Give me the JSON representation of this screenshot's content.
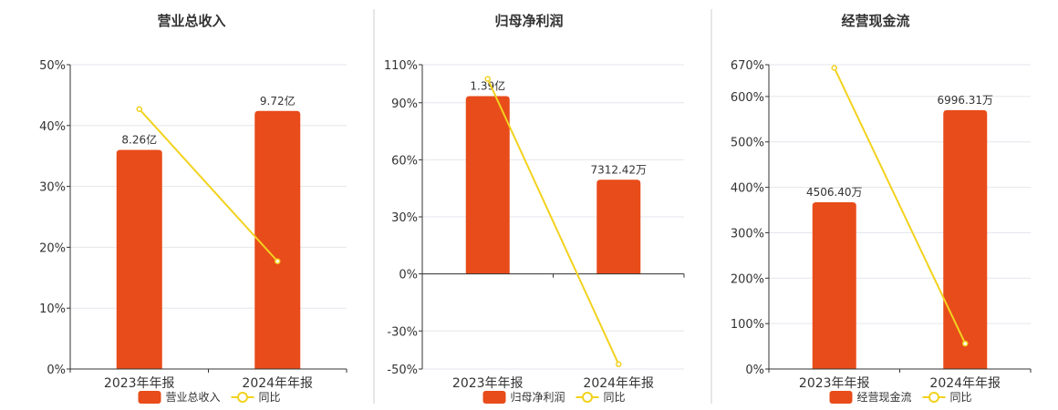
{
  "colors": {
    "bar": "#E84C1A",
    "line": "#F2D21E",
    "grid": "#E4E6EC",
    "axis": "#333333",
    "divider": "#CCCCCC"
  },
  "chart_data": [
    {
      "type": "bar",
      "title": "营业总收入",
      "categories": [
        "2023年年报",
        "2024年年报"
      ],
      "series": [
        {
          "name": "营业总收入",
          "type": "bar",
          "values": [
            36,
            42.4
          ],
          "labels": [
            "8.26亿",
            "9.72亿"
          ]
        },
        {
          "name": "同比",
          "type": "line",
          "values": [
            42.7,
            17.7
          ]
        }
      ],
      "yticks": [
        "0%",
        "10%",
        "20%",
        "30%",
        "40%",
        "50%"
      ],
      "ytick_values": [
        0,
        10,
        20,
        30,
        40,
        50
      ],
      "ylim": [
        0,
        50
      ],
      "grid": true,
      "legend": "bottom"
    },
    {
      "type": "bar",
      "title": "归母净利润",
      "categories": [
        "2023年年报",
        "2024年年报"
      ],
      "series": [
        {
          "name": "归母净利润",
          "type": "bar",
          "values": [
            93.5,
            49.5
          ],
          "labels": [
            "1.39亿",
            "7312.42万"
          ]
        },
        {
          "name": "同比",
          "type": "line",
          "values": [
            102.5,
            -47.5
          ]
        }
      ],
      "yticks": [
        "-50%",
        "-30%",
        "0%",
        "30%",
        "60%",
        "90%",
        "110%"
      ],
      "ytick_values": [
        -50,
        -30,
        0,
        30,
        60,
        90,
        110
      ],
      "ylim": [
        -50,
        110
      ],
      "grid": true,
      "legend": "bottom"
    },
    {
      "type": "bar",
      "title": "经营现金流",
      "categories": [
        "2023年年报",
        "2024年年报"
      ],
      "series": [
        {
          "name": "经营现金流",
          "type": "bar",
          "values": [
            367,
            570
          ],
          "labels": [
            "4506.40万",
            "6996.31万"
          ]
        },
        {
          "name": "同比",
          "type": "line",
          "values": [
            663,
            56
          ]
        }
      ],
      "yticks": [
        "0%",
        "100%",
        "200%",
        "300%",
        "400%",
        "500%",
        "600%",
        "670%"
      ],
      "ytick_values": [
        0,
        100,
        200,
        300,
        400,
        500,
        600,
        670
      ],
      "ylim": [
        0,
        670
      ],
      "grid": true,
      "legend": "bottom"
    }
  ]
}
